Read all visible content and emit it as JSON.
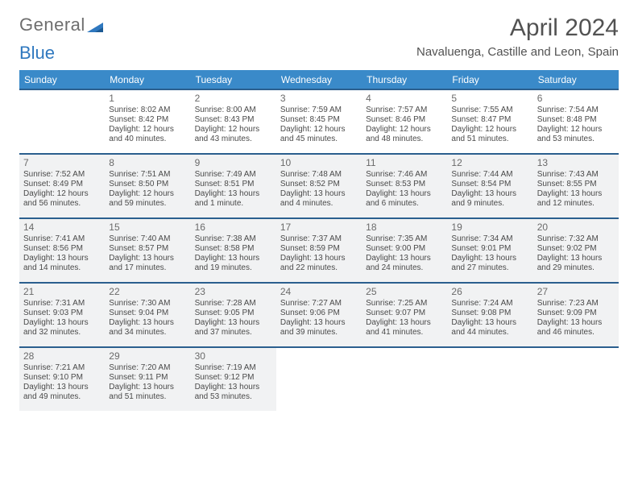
{
  "logo": {
    "general": "General",
    "blue": "Blue"
  },
  "title": "April 2024",
  "subtitle": "Navaluenga, Castille and Leon, Spain",
  "colors": {
    "header_bg": "#3a8ac9",
    "header_text": "#ffffff",
    "cell_border": "#2b5f8e",
    "shade_bg": "#f1f2f3",
    "text": "#4a4a4a",
    "title": "#525252",
    "logo_gray": "#6e6e6e",
    "logo_blue": "#2f78bf"
  },
  "days": [
    "Sunday",
    "Monday",
    "Tuesday",
    "Wednesday",
    "Thursday",
    "Friday",
    "Saturday"
  ],
  "weeks": [
    [
      {
        "num": "",
        "sunrise": "",
        "sunset": "",
        "daylight": "",
        "shade": false
      },
      {
        "num": "1",
        "sunrise": "Sunrise: 8:02 AM",
        "sunset": "Sunset: 8:42 PM",
        "daylight": "Daylight: 12 hours and 40 minutes.",
        "shade": false
      },
      {
        "num": "2",
        "sunrise": "Sunrise: 8:00 AM",
        "sunset": "Sunset: 8:43 PM",
        "daylight": "Daylight: 12 hours and 43 minutes.",
        "shade": false
      },
      {
        "num": "3",
        "sunrise": "Sunrise: 7:59 AM",
        "sunset": "Sunset: 8:45 PM",
        "daylight": "Daylight: 12 hours and 45 minutes.",
        "shade": false
      },
      {
        "num": "4",
        "sunrise": "Sunrise: 7:57 AM",
        "sunset": "Sunset: 8:46 PM",
        "daylight": "Daylight: 12 hours and 48 minutes.",
        "shade": false
      },
      {
        "num": "5",
        "sunrise": "Sunrise: 7:55 AM",
        "sunset": "Sunset: 8:47 PM",
        "daylight": "Daylight: 12 hours and 51 minutes.",
        "shade": false
      },
      {
        "num": "6",
        "sunrise": "Sunrise: 7:54 AM",
        "sunset": "Sunset: 8:48 PM",
        "daylight": "Daylight: 12 hours and 53 minutes.",
        "shade": false
      }
    ],
    [
      {
        "num": "7",
        "sunrise": "Sunrise: 7:52 AM",
        "sunset": "Sunset: 8:49 PM",
        "daylight": "Daylight: 12 hours and 56 minutes.",
        "shade": true
      },
      {
        "num": "8",
        "sunrise": "Sunrise: 7:51 AM",
        "sunset": "Sunset: 8:50 PM",
        "daylight": "Daylight: 12 hours and 59 minutes.",
        "shade": true
      },
      {
        "num": "9",
        "sunrise": "Sunrise: 7:49 AM",
        "sunset": "Sunset: 8:51 PM",
        "daylight": "Daylight: 13 hours and 1 minute.",
        "shade": true
      },
      {
        "num": "10",
        "sunrise": "Sunrise: 7:48 AM",
        "sunset": "Sunset: 8:52 PM",
        "daylight": "Daylight: 13 hours and 4 minutes.",
        "shade": true
      },
      {
        "num": "11",
        "sunrise": "Sunrise: 7:46 AM",
        "sunset": "Sunset: 8:53 PM",
        "daylight": "Daylight: 13 hours and 6 minutes.",
        "shade": true
      },
      {
        "num": "12",
        "sunrise": "Sunrise: 7:44 AM",
        "sunset": "Sunset: 8:54 PM",
        "daylight": "Daylight: 13 hours and 9 minutes.",
        "shade": true
      },
      {
        "num": "13",
        "sunrise": "Sunrise: 7:43 AM",
        "sunset": "Sunset: 8:55 PM",
        "daylight": "Daylight: 13 hours and 12 minutes.",
        "shade": true
      }
    ],
    [
      {
        "num": "14",
        "sunrise": "Sunrise: 7:41 AM",
        "sunset": "Sunset: 8:56 PM",
        "daylight": "Daylight: 13 hours and 14 minutes.",
        "shade": true
      },
      {
        "num": "15",
        "sunrise": "Sunrise: 7:40 AM",
        "sunset": "Sunset: 8:57 PM",
        "daylight": "Daylight: 13 hours and 17 minutes.",
        "shade": true
      },
      {
        "num": "16",
        "sunrise": "Sunrise: 7:38 AM",
        "sunset": "Sunset: 8:58 PM",
        "daylight": "Daylight: 13 hours and 19 minutes.",
        "shade": true
      },
      {
        "num": "17",
        "sunrise": "Sunrise: 7:37 AM",
        "sunset": "Sunset: 8:59 PM",
        "daylight": "Daylight: 13 hours and 22 minutes.",
        "shade": true
      },
      {
        "num": "18",
        "sunrise": "Sunrise: 7:35 AM",
        "sunset": "Sunset: 9:00 PM",
        "daylight": "Daylight: 13 hours and 24 minutes.",
        "shade": true
      },
      {
        "num": "19",
        "sunrise": "Sunrise: 7:34 AM",
        "sunset": "Sunset: 9:01 PM",
        "daylight": "Daylight: 13 hours and 27 minutes.",
        "shade": true
      },
      {
        "num": "20",
        "sunrise": "Sunrise: 7:32 AM",
        "sunset": "Sunset: 9:02 PM",
        "daylight": "Daylight: 13 hours and 29 minutes.",
        "shade": true
      }
    ],
    [
      {
        "num": "21",
        "sunrise": "Sunrise: 7:31 AM",
        "sunset": "Sunset: 9:03 PM",
        "daylight": "Daylight: 13 hours and 32 minutes.",
        "shade": true
      },
      {
        "num": "22",
        "sunrise": "Sunrise: 7:30 AM",
        "sunset": "Sunset: 9:04 PM",
        "daylight": "Daylight: 13 hours and 34 minutes.",
        "shade": true
      },
      {
        "num": "23",
        "sunrise": "Sunrise: 7:28 AM",
        "sunset": "Sunset: 9:05 PM",
        "daylight": "Daylight: 13 hours and 37 minutes.",
        "shade": true
      },
      {
        "num": "24",
        "sunrise": "Sunrise: 7:27 AM",
        "sunset": "Sunset: 9:06 PM",
        "daylight": "Daylight: 13 hours and 39 minutes.",
        "shade": true
      },
      {
        "num": "25",
        "sunrise": "Sunrise: 7:25 AM",
        "sunset": "Sunset: 9:07 PM",
        "daylight": "Daylight: 13 hours and 41 minutes.",
        "shade": true
      },
      {
        "num": "26",
        "sunrise": "Sunrise: 7:24 AM",
        "sunset": "Sunset: 9:08 PM",
        "daylight": "Daylight: 13 hours and 44 minutes.",
        "shade": true
      },
      {
        "num": "27",
        "sunrise": "Sunrise: 7:23 AM",
        "sunset": "Sunset: 9:09 PM",
        "daylight": "Daylight: 13 hours and 46 minutes.",
        "shade": true
      }
    ],
    [
      {
        "num": "28",
        "sunrise": "Sunrise: 7:21 AM",
        "sunset": "Sunset: 9:10 PM",
        "daylight": "Daylight: 13 hours and 49 minutes.",
        "shade": true
      },
      {
        "num": "29",
        "sunrise": "Sunrise: 7:20 AM",
        "sunset": "Sunset: 9:11 PM",
        "daylight": "Daylight: 13 hours and 51 minutes.",
        "shade": true
      },
      {
        "num": "30",
        "sunrise": "Sunrise: 7:19 AM",
        "sunset": "Sunset: 9:12 PM",
        "daylight": "Daylight: 13 hours and 53 minutes.",
        "shade": true
      },
      {
        "num": "",
        "sunrise": "",
        "sunset": "",
        "daylight": "",
        "shade": false
      },
      {
        "num": "",
        "sunrise": "",
        "sunset": "",
        "daylight": "",
        "shade": false
      },
      {
        "num": "",
        "sunrise": "",
        "sunset": "",
        "daylight": "",
        "shade": false
      },
      {
        "num": "",
        "sunrise": "",
        "sunset": "",
        "daylight": "",
        "shade": false
      }
    ]
  ]
}
